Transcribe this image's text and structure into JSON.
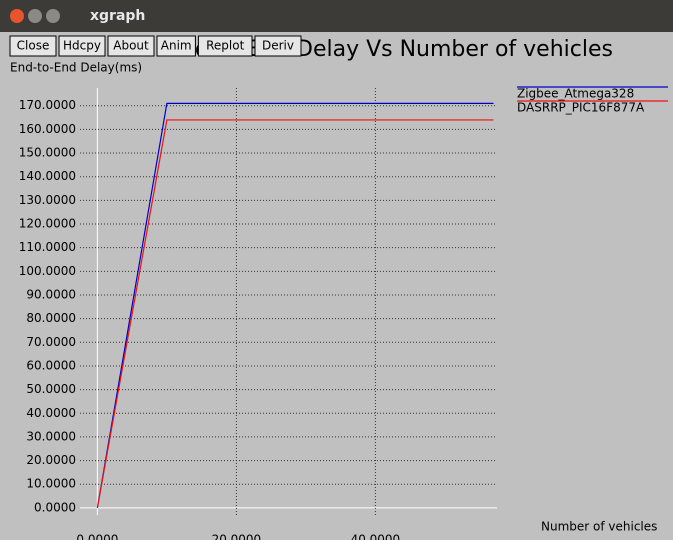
{
  "window": {
    "title": "xgraph",
    "buttons": [
      "Close",
      "Hdcpy",
      "About",
      "Anim",
      "Replot",
      "Deriv"
    ]
  },
  "chart_data": {
    "type": "line",
    "title": "End-to-End Delay Vs Number of vehicles",
    "y_label": "End-to-End Delay(ms)",
    "x_label": "Number of vehicles",
    "xlim": [
      -2.5,
      57.5
    ],
    "ylim": [
      -3,
      177.5
    ],
    "xticks": [
      {
        "value": 0,
        "label": "0.0000"
      },
      {
        "value": 20,
        "label": "20.0000"
      },
      {
        "value": 40,
        "label": "40.0000"
      }
    ],
    "yticks": [
      {
        "value": 0,
        "label": "0.0000"
      },
      {
        "value": 10,
        "label": "10.0000"
      },
      {
        "value": 20,
        "label": "20.0000"
      },
      {
        "value": 30,
        "label": "30.0000"
      },
      {
        "value": 40,
        "label": "40.0000"
      },
      {
        "value": 50,
        "label": "50.0000"
      },
      {
        "value": 60,
        "label": "60.0000"
      },
      {
        "value": 70,
        "label": "70.0000"
      },
      {
        "value": 80,
        "label": "80.0000"
      },
      {
        "value": 90,
        "label": "90.0000"
      },
      {
        "value": 100,
        "label": "100.0000"
      },
      {
        "value": 110,
        "label": "110.0000"
      },
      {
        "value": 120,
        "label": "120.0000"
      },
      {
        "value": 130,
        "label": "130.0000"
      },
      {
        "value": 140,
        "label": "140.0000"
      },
      {
        "value": 150,
        "label": "150.0000"
      },
      {
        "value": 160,
        "label": "160.0000"
      },
      {
        "value": 170,
        "label": "170.0000"
      }
    ],
    "grid": true,
    "legend": "top-right",
    "series": [
      {
        "name": "Zigbee_Atmega328",
        "color": "#0000cc",
        "x": [
          0,
          10,
          57
        ],
        "values": [
          0,
          171,
          171
        ]
      },
      {
        "name": "DASRRP_PIC16F877A",
        "color": "#ee1111",
        "x": [
          0,
          10,
          57
        ],
        "values": [
          0,
          164,
          164
        ]
      }
    ]
  }
}
